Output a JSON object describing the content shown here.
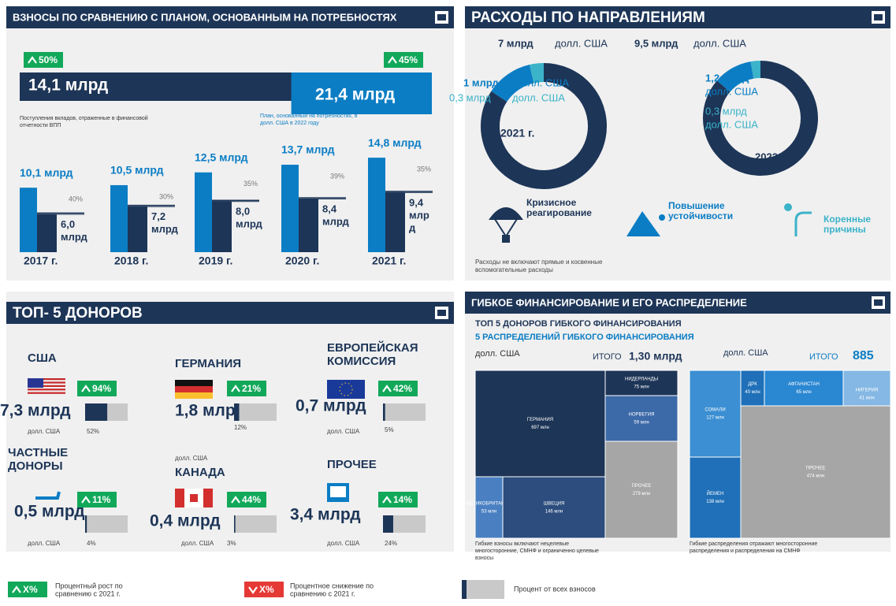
{
  "contributions": {
    "title": "ВЗНОСЫ ПО СРАВНЕНИЮ С ПЛАНОМ, ОСНОВАННЫМ НА ПОТРЕБНОСТЯХ",
    "contributed_change": "50%",
    "needs_change": "45%",
    "contributed": 14.1,
    "contributed_label": "14,1 млрд",
    "needs": 21.4,
    "needs_label": "21,4 млрд",
    "contributed_note": [
      "Поступления вкладов, отраженные в финансовой",
      "отчетности ВПП"
    ],
    "needs_note": [
      "План, основанный на потребностях, в",
      "долл. США в 2022 году"
    ],
    "years": [
      {
        "year": "2017 г.",
        "total": 10.1,
        "total_label": "10,1 млрд",
        "funded": 6.0,
        "funded_label": [
          "6,0",
          "млрд"
        ],
        "gap": "40%"
      },
      {
        "year": "2018 г.",
        "total": 10.5,
        "total_label": "10,5 млрд",
        "funded": 7.2,
        "funded_label": [
          "7,2",
          "млрд"
        ],
        "gap": "30%"
      },
      {
        "year": "2019 г.",
        "total": 12.5,
        "total_label": "12,5 млрд",
        "funded": 8.0,
        "funded_label": [
          "8,0",
          "млрд"
        ],
        "gap": "35%"
      },
      {
        "year": "2020 г.",
        "total": 13.7,
        "total_label": "13,7 млрд",
        "funded": 8.4,
        "funded_label": [
          "8,4",
          "млрд"
        ],
        "gap": "39%"
      },
      {
        "year": "2021 г.",
        "total": 14.8,
        "total_label": "14,8 млрд",
        "funded": 9.4,
        "funded_label": [
          "9,4",
          "млр",
          "д"
        ],
        "gap": "35%"
      }
    ]
  },
  "spending": {
    "title": "РАСХОДЫ ПО НАПРАВЛЕНИЯМ",
    "unit": "долл. США",
    "years": [
      {
        "year": "2021 г.",
        "segments": [
          {
            "value": 7,
            "label": "7 млрд"
          },
          {
            "value": 1,
            "label": "1 млрд"
          },
          {
            "value": 0.3,
            "label": "0,3 млрд"
          }
        ]
      },
      {
        "year": "2022",
        "segments": [
          {
            "value": 9.5,
            "label": "9,5 млрд"
          },
          {
            "value": 1.2,
            "label": "1,2 млрд"
          },
          {
            "value": 0.3,
            "label": "0,3 млрд"
          }
        ]
      }
    ],
    "categories": [
      [
        "Кризисное",
        "реагирование"
      ],
      [
        "Повышение",
        "устойчивости"
      ],
      [
        "Коренные",
        "причины"
      ]
    ],
    "note": [
      "Расходы не включают прямые и косвенные",
      "вспомогательные расходы"
    ]
  },
  "donors": {
    "title": "ТОП- 5 ДОНОРОВ",
    "unit": "долл. США",
    "items": [
      {
        "name": [
          "США"
        ],
        "change": "94%",
        "amount": "7,3 млрд",
        "share": 52,
        "share_label": "52%"
      },
      {
        "name": [
          "ГЕРМАНИЯ"
        ],
        "change": "21%",
        "amount": "1,8 млрд",
        "share": 12,
        "share_label": "12%"
      },
      {
        "name": [
          "ЕВРОПЕЙСКАЯ",
          "КОМИССИЯ"
        ],
        "change": "42%",
        "amount": "0,7 млрд",
        "share": 5,
        "share_label": "5%"
      },
      {
        "name": [
          "ЧАСТНЫЕ",
          "ДОНОРЫ"
        ],
        "change": "11%",
        "amount": "0,5 млрд",
        "share": 4,
        "share_label": "4%"
      },
      {
        "name": [
          "КАНАДА"
        ],
        "change": "44%",
        "amount": "0,4 млрд",
        "share": 3,
        "share_label": "3%"
      },
      {
        "name": [
          "ПРОЧЕЕ"
        ],
        "change": "14%",
        "amount": "3,4 млрд",
        "share": 24,
        "share_label": "24%"
      }
    ]
  },
  "flexible": {
    "title": "ГИБКОЕ ФИНАНСИРОВАНИЕ И ЕГО РАСПРЕДЕЛЕНИЕ",
    "donors_title": "ТОП 5 ДОНОРОВ ГИБКОГО ФИНАНСИРОВАНИЯ",
    "allocations_title": "5 РАСПРЕДЕЛЕНИЙ ГИБКОГО ФИНАНСИРОВАНИЯ",
    "unit": "долл. США",
    "total_word": "ИТОГО",
    "donors_total": "1,30 млрд",
    "allocations_total": "885",
    "donor_cells": [
      {
        "name": "ГЕРМАНИЯ",
        "value": 697,
        "label": "697 млн"
      },
      {
        "name": "НИДЕРЛАНДЫ",
        "value": 75,
        "label": "75 млн"
      },
      {
        "name": "НОРВЕГИЯ",
        "value": 59,
        "label": "59 млн"
      },
      {
        "name": "ПРОЧЕЕ",
        "value": 279,
        "label": "279 млн"
      },
      {
        "name": "ВЕЛИКОБРИТАНИЯ",
        "value": 53,
        "label": "53 млн"
      },
      {
        "name": "ШВЕЦИЯ",
        "value": 146,
        "label": "146 млн"
      }
    ],
    "allocation_cells": [
      {
        "name": "СОМАЛИ",
        "value": 127,
        "label": "127 млн"
      },
      {
        "name": "ДРК",
        "value": 40,
        "label": "40 млн"
      },
      {
        "name": "АФГАНИСТАН",
        "value": 65,
        "label": "65 млн"
      },
      {
        "name": "НИГЕРИЯ",
        "value": 41,
        "label": "41 млн"
      },
      {
        "name": "ПРОЧЕЕ",
        "value": 474,
        "label": "474 млн"
      },
      {
        "name": "ЙЕМЕН",
        "value": 138,
        "label": "138 млн"
      }
    ],
    "donors_note": [
      "Гибкие взносы включают нецелевые",
      "многосторонние, СМНФ и ограниченно целевые",
      "взносы"
    ],
    "allocations_note": [
      "Гибкие распределения отражают многосторонние",
      "распределения и распределения на СМНФ"
    ]
  },
  "legend": {
    "placeholder": "X%",
    "increase": [
      "Процентный рост по",
      "сравнению с 2021 г."
    ],
    "decrease": [
      "Процентное снижение по",
      "сравнению с 2021 г."
    ],
    "share": "Процент от всех взносов"
  }
}
